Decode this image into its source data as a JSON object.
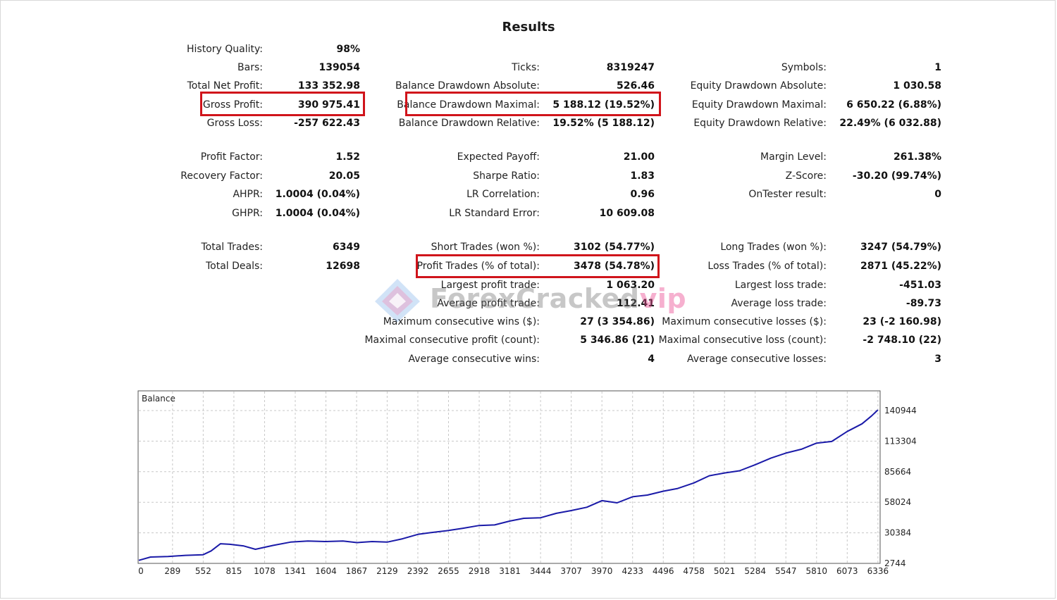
{
  "title": "Results",
  "stats": {
    "history_quality": {
      "label": "History Quality:",
      "value": "98%"
    },
    "bars": {
      "label": "Bars:",
      "value": "139054"
    },
    "ticks": {
      "label": "Ticks:",
      "value": "8319247"
    },
    "symbols": {
      "label": "Symbols:",
      "value": "1"
    },
    "total_net_profit": {
      "label": "Total Net Profit:",
      "value": "133 352.98"
    },
    "balance_dd_abs": {
      "label": "Balance Drawdown Absolute:",
      "value": "526.46"
    },
    "equity_dd_abs": {
      "label": "Equity Drawdown Absolute:",
      "value": "1 030.58"
    },
    "gross_profit": {
      "label": "Gross Profit:",
      "value": "390 975.41"
    },
    "balance_dd_max": {
      "label": "Balance Drawdown Maximal:",
      "value": "5 188.12 (19.52%)"
    },
    "equity_dd_max": {
      "label": "Equity Drawdown Maximal:",
      "value": "6 650.22 (6.88%)"
    },
    "gross_loss": {
      "label": "Gross Loss:",
      "value": "-257 622.43"
    },
    "balance_dd_rel": {
      "label": "Balance Drawdown Relative:",
      "value": "19.52% (5 188.12)"
    },
    "equity_dd_rel": {
      "label": "Equity Drawdown Relative:",
      "value": "22.49% (6 032.88)"
    },
    "profit_factor": {
      "label": "Profit Factor:",
      "value": "1.52"
    },
    "expected_payoff": {
      "label": "Expected Payoff:",
      "value": "21.00"
    },
    "margin_level": {
      "label": "Margin Level:",
      "value": "261.38%"
    },
    "recovery_factor": {
      "label": "Recovery Factor:",
      "value": "20.05"
    },
    "sharpe_ratio": {
      "label": "Sharpe Ratio:",
      "value": "1.83"
    },
    "z_score": {
      "label": "Z-Score:",
      "value": "-30.20 (99.74%)"
    },
    "ahpr": {
      "label": "AHPR:",
      "value": "1.0004 (0.04%)"
    },
    "lr_correlation": {
      "label": "LR Correlation:",
      "value": "0.96"
    },
    "ontester": {
      "label": "OnTester result:",
      "value": "0"
    },
    "ghpr": {
      "label": "GHPR:",
      "value": "1.0004 (0.04%)"
    },
    "lr_std_error": {
      "label": "LR Standard Error:",
      "value": "10 609.08"
    },
    "total_trades": {
      "label": "Total Trades:",
      "value": "6349"
    },
    "short_trades": {
      "label": "Short Trades (won %):",
      "value": "3102 (54.77%)"
    },
    "long_trades": {
      "label": "Long Trades (won %):",
      "value": "3247 (54.79%)"
    },
    "total_deals": {
      "label": "Total Deals:",
      "value": "12698"
    },
    "profit_trades": {
      "label": "Profit Trades (% of total):",
      "value": "3478 (54.78%)"
    },
    "loss_trades": {
      "label": "Loss Trades (% of total):",
      "value": "2871 (45.22%)"
    },
    "largest_profit": {
      "label": "Largest profit trade:",
      "value": "1 063.20"
    },
    "largest_loss": {
      "label": "Largest loss trade:",
      "value": "-451.03"
    },
    "avg_profit": {
      "label": "Average profit trade:",
      "value": "112.41"
    },
    "avg_loss": {
      "label": "Average loss trade:",
      "value": "-89.73"
    },
    "max_cons_wins": {
      "label": "Maximum consecutive wins ($):",
      "value": "27 (3 354.86)"
    },
    "max_cons_losses": {
      "label": "Maximum consecutive losses ($):",
      "value": "23 (-2 160.98)"
    },
    "maximal_cons_profit": {
      "label": "Maximal consecutive profit (count):",
      "value": "5 346.86 (21)"
    },
    "maximal_cons_loss": {
      "label": "Maximal consecutive loss (count):",
      "value": "-2 748.10 (22)"
    },
    "avg_cons_wins": {
      "label": "Average consecutive wins:",
      "value": "4"
    },
    "avg_cons_losses": {
      "label": "Average consecutive losses:",
      "value": "3"
    }
  },
  "watermark": {
    "main": "ForexCracked",
    "suffix": "vip"
  },
  "colors": {
    "highlight": "#d0141b",
    "line": "#1a1aa8",
    "grid": "#c8c8c8"
  },
  "chart_data": {
    "type": "line",
    "title": "Balance",
    "x_ticks": [
      0,
      289,
      552,
      815,
      1078,
      1341,
      1604,
      1867,
      2129,
      2392,
      2655,
      2918,
      3181,
      3444,
      3707,
      3970,
      4233,
      4496,
      4758,
      5021,
      5284,
      5547,
      5810,
      6073,
      6336
    ],
    "y_ticks": [
      2744,
      30384,
      58024,
      85664,
      113304,
      140944
    ],
    "xlim": [
      0,
      6349
    ],
    "ylim": [
      2744,
      143000
    ],
    "grid": true,
    "series": [
      {
        "x": [
          0,
          100,
          250,
          400,
          550,
          620,
          700,
          780,
          900,
          1000,
          1150,
          1300,
          1450,
          1600,
          1750,
          1870,
          2000,
          2129,
          2260,
          2392,
          2500,
          2655,
          2780,
          2918,
          3050,
          3181,
          3300,
          3444,
          3580,
          3707,
          3840,
          3970,
          4100,
          4233,
          4360,
          4496,
          4620,
          4758,
          4890,
          5021,
          5150,
          5284,
          5420,
          5547,
          5680,
          5810,
          5940,
          6073,
          6200,
          6280,
          6336
        ],
        "y": [
          5500,
          8500,
          9000,
          10000,
          10500,
          14000,
          20500,
          20000,
          18500,
          15500,
          19000,
          22000,
          23000,
          22500,
          23000,
          21500,
          22500,
          22000,
          25000,
          29000,
          30500,
          32500,
          34500,
          37000,
          37500,
          41000,
          43500,
          44000,
          48000,
          50500,
          53500,
          59500,
          57500,
          63000,
          64500,
          68000,
          70500,
          75500,
          82000,
          84500,
          86500,
          92000,
          98000,
          102500,
          106000,
          111500,
          113000,
          122000,
          129000,
          136000,
          141500
        ]
      }
    ]
  }
}
